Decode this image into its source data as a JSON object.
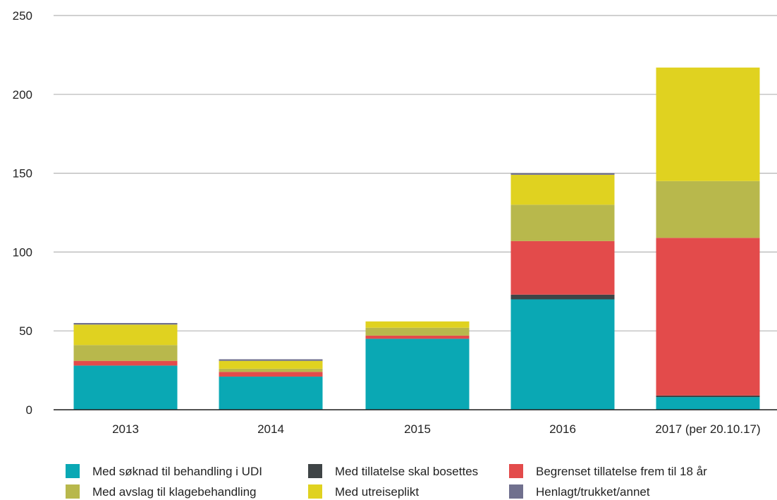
{
  "chart_data": {
    "type": "bar",
    "stacked": true,
    "categories": [
      "2013",
      "2014",
      "2015",
      "2016",
      "2017 (per 20.10.17)"
    ],
    "ylim": [
      0,
      250
    ],
    "yticks": [
      0,
      50,
      100,
      150,
      200,
      250
    ],
    "grid": true,
    "legend_position": "bottom",
    "series": [
      {
        "name": "Med søknad til behandling i UDI",
        "color": "#0aa8b4",
        "values": [
          28,
          21,
          45,
          70,
          8
        ]
      },
      {
        "name": "Med tillatelse skal bosettes",
        "color": "#3f4446",
        "values": [
          0,
          0,
          0,
          3,
          1
        ]
      },
      {
        "name": "Begrenset tillatelse frem til 18 år",
        "color": "#e34b4b",
        "values": [
          3,
          3,
          2,
          34,
          100
        ]
      },
      {
        "name": "Med avslag til klagebehandling",
        "color": "#b8b84c",
        "values": [
          10,
          2,
          5,
          23,
          36
        ]
      },
      {
        "name": "Med utreiseplikt",
        "color": "#e0d220",
        "values": [
          13,
          5,
          4,
          19,
          72
        ]
      },
      {
        "name": "Henlagt/trukket/annet",
        "color": "#70708e",
        "values": [
          1,
          1,
          0,
          1,
          0
        ]
      }
    ]
  },
  "legend": {
    "items": [
      {
        "label": "Med søknad til behandling i UDI",
        "color": "#0aa8b4"
      },
      {
        "label": "Med tillatelse skal bosettes",
        "color": "#3f4446"
      },
      {
        "label": "Begrenset tillatelse frem til 18 år",
        "color": "#e34b4b"
      },
      {
        "label": "Med avslag til klagebehandling",
        "color": "#b8b84c"
      },
      {
        "label": "Med utreiseplikt",
        "color": "#e0d220"
      },
      {
        "label": "Henlagt/trukket/annet",
        "color": "#70708e"
      }
    ]
  }
}
